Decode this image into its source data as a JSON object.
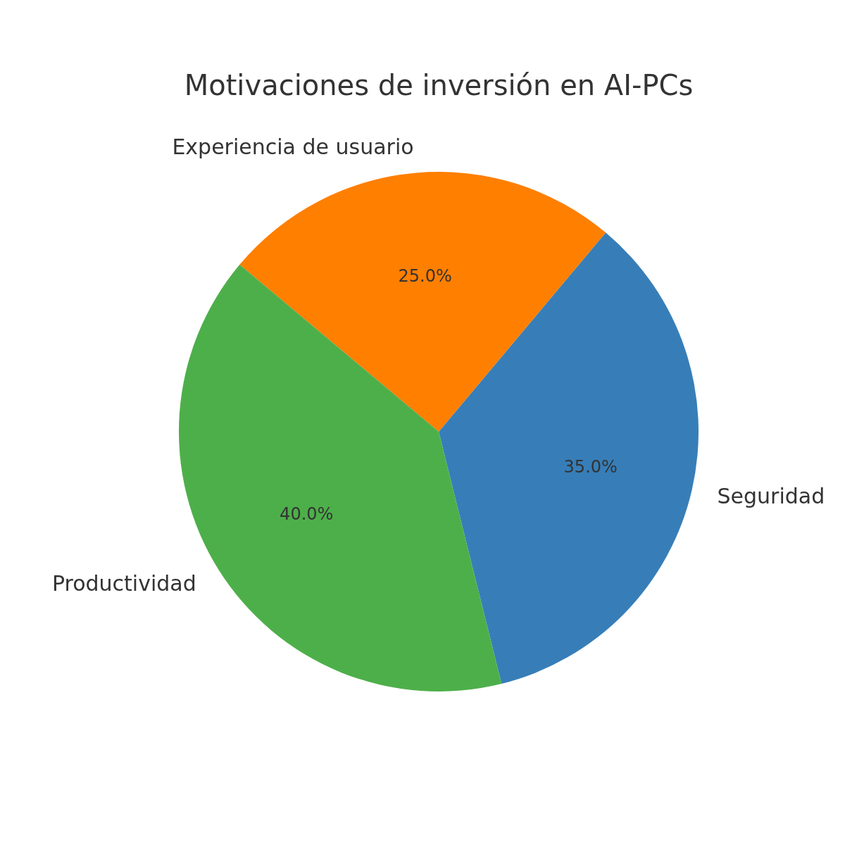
{
  "chart_data": {
    "type": "pie",
    "title": "Motivaciones de inversión en AI-PCs",
    "categories": [
      "Seguridad",
      "Experiencia de usuario",
      "Productividad"
    ],
    "values": [
      35,
      25,
      40
    ],
    "colors": [
      "#377eb8",
      "#ff7f00",
      "#4daf4a"
    ],
    "value_labels": [
      "35.0%",
      "25.0%",
      "40.0%"
    ]
  }
}
